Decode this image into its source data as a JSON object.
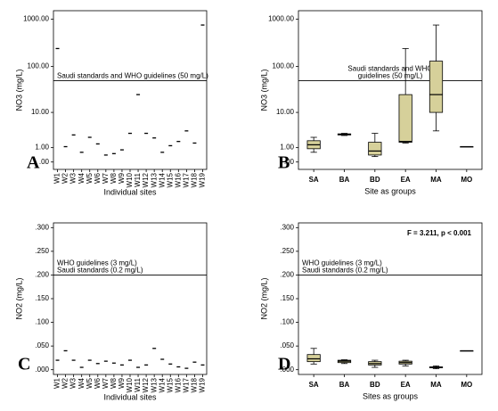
{
  "chart_data": [
    {
      "type": "dot",
      "panel_label": "A",
      "y_label": "NO3 (mg/L)",
      "x_label": "Individual sites",
      "categories": [
        "W1",
        "W2",
        "W3",
        "W4",
        "W5",
        "W6",
        "W7",
        "W8",
        "W9",
        "W10",
        "W11",
        "W12",
        "W13",
        "W14",
        "W15",
        "W16",
        "W17",
        "W18",
        "W19"
      ],
      "values": [
        240,
        1.1,
        2.7,
        0.6,
        2.3,
        1.4,
        0.4,
        0.5,
        0.8,
        3,
        25,
        3,
        2.2,
        0.6,
        1.2,
        1.7,
        3.5,
        1.5,
        750
      ],
      "color": "#000000",
      "yscale": "log1p",
      "ylim": [
        -0.3,
        1500
      ],
      "yticks": [
        {
          "value": 1000,
          "label": "1000.00"
        },
        {
          "value": 100,
          "label": "100.00"
        },
        {
          "value": 10,
          "label": "10.00"
        },
        {
          "value": 1,
          "label": "1.00"
        },
        {
          "value": 0,
          "label": ".00"
        }
      ],
      "reference_line": {
        "value": 50,
        "labels": [
          "Saudi standards and WHO guidelines (50 mg/L)"
        ]
      }
    },
    {
      "type": "box",
      "panel_label": "B",
      "y_label": "NO3 (mg/L)",
      "x_label": "Site as groups",
      "categories": [
        "SA",
        "BA",
        "BD",
        "EA",
        "MA",
        "MO"
      ],
      "min": [
        0.6,
        2.6,
        0.3,
        1.5,
        3.5,
        1.1
      ],
      "q1": [
        0.9,
        2.7,
        0.4,
        1.6,
        10,
        1.1
      ],
      "median": [
        1.3,
        2.8,
        0.7,
        1.7,
        25,
        1.1
      ],
      "q3": [
        1.8,
        2.9,
        1.6,
        25,
        130,
        1.1
      ],
      "max": [
        2.3,
        3.0,
        3.0,
        240,
        750,
        1.1
      ],
      "color": "#d6d09a",
      "yscale": "log1p",
      "ylim": [
        -0.3,
        1500
      ],
      "yticks": [
        {
          "value": 1000,
          "label": "1000.00"
        },
        {
          "value": 100,
          "label": "100.00"
        },
        {
          "value": 10,
          "label": "10.00"
        },
        {
          "value": 1,
          "label": "1.00"
        },
        {
          "value": 0,
          "label": ".00"
        }
      ],
      "reference_line": {
        "value": 50,
        "labels": [
          "Saudi standards and WHO",
          "guidelines (50 mg/L)"
        ]
      }
    },
    {
      "type": "dot",
      "panel_label": "C",
      "y_label": "NO2 (mg/L)",
      "x_label": "Individual sites",
      "categories": [
        "W1",
        "W2",
        "W3",
        "W4",
        "W5",
        "W6",
        "W7",
        "W8",
        "W9",
        "W10",
        "W11",
        "W12",
        "W13",
        "W14",
        "W15",
        "W16",
        "W17",
        "W18",
        "W19"
      ],
      "values": [
        0.02,
        0.04,
        0.02,
        0.005,
        0.02,
        0.013,
        0.018,
        0.014,
        0.01,
        0.02,
        0.005,
        0.01,
        0.045,
        0.022,
        0.012,
        0.006,
        0.003,
        0.016,
        0.01
      ],
      "color": "#000000",
      "yscale": "linear",
      "ylim": [
        -0.01,
        0.31
      ],
      "yticks": [
        {
          "value": 0.3,
          "label": ".300"
        },
        {
          "value": 0.25,
          "label": ".250"
        },
        {
          "value": 0.2,
          "label": ".200"
        },
        {
          "value": 0.15,
          "label": ".150"
        },
        {
          "value": 0.1,
          "label": ".100"
        },
        {
          "value": 0.05,
          "label": ".050"
        },
        {
          "value": 0,
          "label": ".000"
        }
      ],
      "reference_line": {
        "value": 0.2,
        "labels": [
          "WHO guidelines (3 mg/L)",
          "Saudi standards (0.2 mg/L)"
        ]
      }
    },
    {
      "type": "box",
      "panel_label": "D",
      "y_label": "NO2 (mg/L)",
      "x_label": "Sites as groups",
      "stat_text": "F = 3.211,  p < 0.001",
      "categories": [
        "SA",
        "BA",
        "BD",
        "EA",
        "MA",
        "MO"
      ],
      "min": [
        0.012,
        0.013,
        0.005,
        0.008,
        0.002,
        0.04
      ],
      "q1": [
        0.017,
        0.015,
        0.01,
        0.012,
        0.004,
        0.04
      ],
      "median": [
        0.023,
        0.018,
        0.013,
        0.015,
        0.005,
        0.04
      ],
      "q3": [
        0.032,
        0.02,
        0.017,
        0.018,
        0.006,
        0.04
      ],
      "max": [
        0.045,
        0.021,
        0.02,
        0.02,
        0.008,
        0.04
      ],
      "color": "#d6d09a",
      "yscale": "linear",
      "ylim": [
        -0.01,
        0.31
      ],
      "yticks": [
        {
          "value": 0.3,
          "label": ".300"
        },
        {
          "value": 0.25,
          "label": ".250"
        },
        {
          "value": 0.2,
          "label": ".200"
        },
        {
          "value": 0.15,
          "label": ".150"
        },
        {
          "value": 0.1,
          "label": ".100"
        },
        {
          "value": 0.05,
          "label": ".050"
        },
        {
          "value": 0,
          "label": ".000"
        }
      ],
      "reference_line": {
        "value": 0.2,
        "labels": [
          "WHO guidelines (3 mg/L)",
          "Saudi standards (0.2 mg/L)"
        ]
      }
    }
  ]
}
